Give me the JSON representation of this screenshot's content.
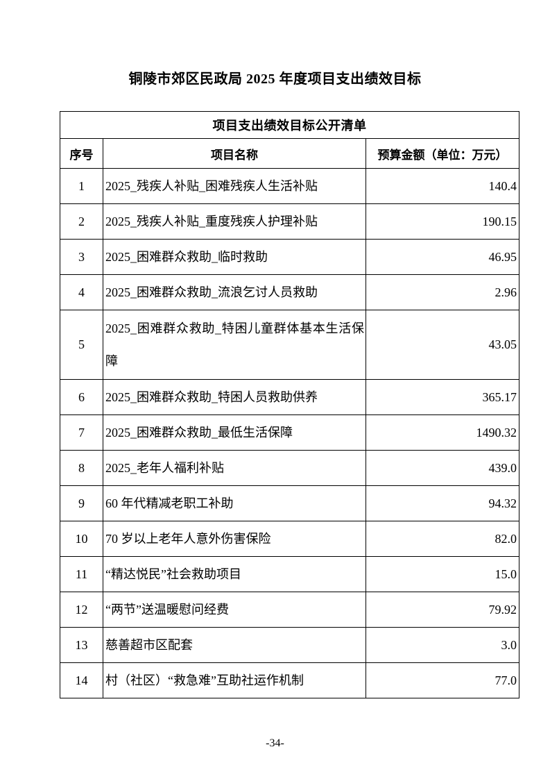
{
  "page": {
    "title": "铜陵市郊区民政局 2025 年度项目支出绩效目标",
    "footer_page_number": "-34-"
  },
  "table": {
    "caption": "项目支出绩效目标公开清单",
    "headers": {
      "no": "序号",
      "name": "项目名称",
      "amount": "预算金额（单位：万元）"
    },
    "rows": [
      {
        "no": "1",
        "name": "2025_残疾人补贴_困难残疾人生活补贴",
        "amount": "140.4"
      },
      {
        "no": "2",
        "name": "2025_残疾人补贴_重度残疾人护理补贴",
        "amount": "190.15"
      },
      {
        "no": "3",
        "name": "2025_困难群众救助_临时救助",
        "amount": "46.95"
      },
      {
        "no": "4",
        "name": "2025_困难群众救助_流浪乞讨人员救助",
        "amount": "2.96"
      },
      {
        "no": "5",
        "name": "2025_困难群众救助_特困儿童群体基本生活保障",
        "amount": "43.05"
      },
      {
        "no": "6",
        "name": "2025_困难群众救助_特困人员救助供养",
        "amount": "365.17"
      },
      {
        "no": "7",
        "name": "2025_困难群众救助_最低生活保障",
        "amount": "1490.32"
      },
      {
        "no": "8",
        "name": "2025_老年人福利补贴",
        "amount": "439.0"
      },
      {
        "no": "9",
        "name": "60 年代精减老职工补助",
        "amount": "94.32"
      },
      {
        "no": "10",
        "name": "70 岁以上老年人意外伤害保险",
        "amount": "82.0"
      },
      {
        "no": "11",
        "name": "“精达悦民”社会救助项目",
        "amount": "15.0"
      },
      {
        "no": "12",
        "name": "“两节”送温暖慰问经费",
        "amount": "79.92"
      },
      {
        "no": "13",
        "name": "慈善超市区配套",
        "amount": "3.0"
      },
      {
        "no": "14",
        "name": "村（社区）“救急难”互助社运作机制",
        "amount": "77.0"
      }
    ]
  }
}
